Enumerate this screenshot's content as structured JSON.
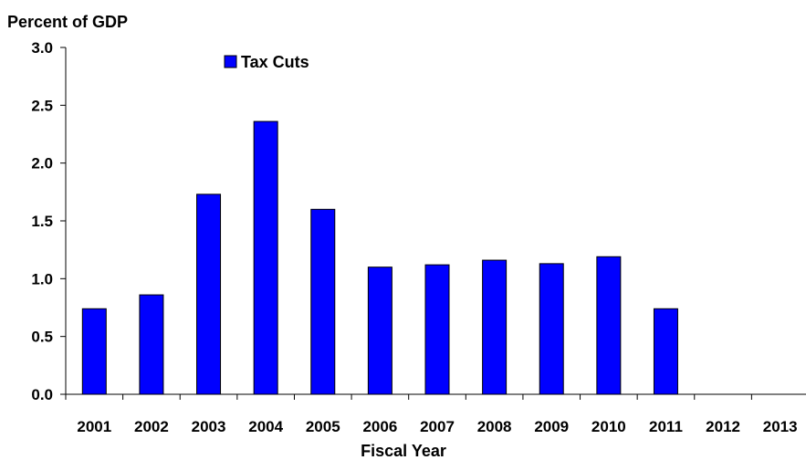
{
  "chart_data": {
    "type": "bar",
    "title": "",
    "ylabel": "Percent of GDP",
    "xlabel": "Fiscal Year",
    "categories": [
      "2001",
      "2002",
      "2003",
      "2004",
      "2005",
      "2006",
      "2007",
      "2008",
      "2009",
      "2010",
      "2011",
      "2012",
      "2013"
    ],
    "series": [
      {
        "name": "Tax Cuts",
        "color": "#0000ff",
        "values": [
          0.74,
          0.86,
          1.73,
          2.36,
          1.6,
          1.1,
          1.12,
          1.16,
          1.13,
          1.19,
          0.74,
          0,
          0
        ]
      }
    ],
    "ylim": [
      0,
      3.0
    ],
    "yticks": [
      "0.0",
      "0.5",
      "1.0",
      "1.5",
      "2.0",
      "2.5",
      "3.0"
    ],
    "grid": false,
    "legend": {
      "placement": "top-left",
      "label": "Tax Cuts"
    }
  }
}
